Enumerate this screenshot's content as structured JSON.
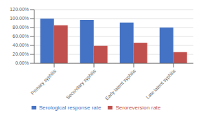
{
  "chart_data": {
    "type": "bar",
    "categories": [
      "Primary syphilis",
      "Secondary syphilis",
      "Early latent syphilis",
      "Late latent syphilis"
    ],
    "series": [
      {
        "name": "Serological response rate",
        "color": "#4472C4",
        "values": [
          100.0,
          97.0,
          91.0,
          80.0
        ]
      },
      {
        "name": "Seroreversion rate",
        "color": "#C0504D",
        "values": [
          85.0,
          39.0,
          46.0,
          25.0
        ]
      }
    ],
    "ylim": [
      0,
      120
    ],
    "yticks": [
      {
        "value": 0,
        "label": "0.00%"
      },
      {
        "value": 20,
        "label": "20.00%"
      },
      {
        "value": 40,
        "label": "40.00%"
      },
      {
        "value": 60,
        "label": "60.00%"
      },
      {
        "value": 80,
        "label": "80.00%"
      },
      {
        "value": 100,
        "label": "100.00%"
      },
      {
        "value": 120,
        "label": "120.00%"
      }
    ],
    "grid": true,
    "legend": "bottom"
  }
}
